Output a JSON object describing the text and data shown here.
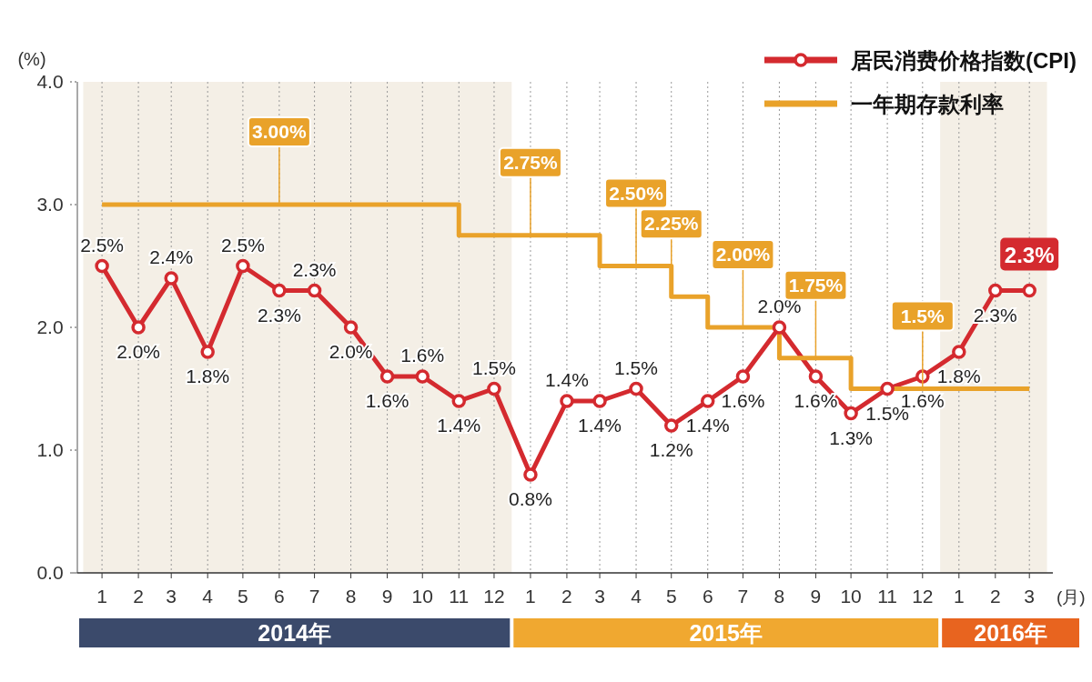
{
  "chart_data": {
    "type": "line",
    "ylabel": "(%)",
    "xlabel": "(月)",
    "x": [
      "2014-01",
      "2014-02",
      "2014-03",
      "2014-04",
      "2014-05",
      "2014-06",
      "2014-07",
      "2014-08",
      "2014-09",
      "2014-10",
      "2014-11",
      "2014-12",
      "2015-01",
      "2015-02",
      "2015-03",
      "2015-04",
      "2015-05",
      "2015-06",
      "2015-07",
      "2015-08",
      "2015-09",
      "2015-10",
      "2015-11",
      "2015-12",
      "2016-01",
      "2016-02",
      "2016-03"
    ],
    "xlim": [
      "2013-12-11",
      "2016-03-21"
    ],
    "xticks": [
      {
        "value": "2014-01",
        "label": "1"
      },
      {
        "value": "2014-02",
        "label": "2"
      },
      {
        "value": "2014-03",
        "label": "3"
      },
      {
        "value": "2014-04",
        "label": "4"
      },
      {
        "value": "2014-05",
        "label": "5"
      },
      {
        "value": "2014-06",
        "label": "6"
      },
      {
        "value": "2014-07",
        "label": "7"
      },
      {
        "value": "2014-08",
        "label": "8"
      },
      {
        "value": "2014-09",
        "label": "9"
      },
      {
        "value": "2014-10",
        "label": "10"
      },
      {
        "value": "2014-11",
        "label": "11"
      },
      {
        "value": "2014-12",
        "label": "12"
      },
      {
        "value": "2015-01",
        "label": "1"
      },
      {
        "value": "2015-02",
        "label": "2"
      },
      {
        "value": "2015-03",
        "label": "3"
      },
      {
        "value": "2015-04",
        "label": "4"
      },
      {
        "value": "2015-05",
        "label": "5"
      },
      {
        "value": "2015-06",
        "label": "6"
      },
      {
        "value": "2015-07",
        "label": "7"
      },
      {
        "value": "2015-08",
        "label": "8"
      },
      {
        "value": "2015-09",
        "label": "9"
      },
      {
        "value": "2015-10",
        "label": "10"
      },
      {
        "value": "2015-11",
        "label": "11"
      },
      {
        "value": "2015-12",
        "label": "12"
      },
      {
        "value": "2016-01",
        "label": "1"
      },
      {
        "value": "2016-02",
        "label": "2"
      },
      {
        "value": "2016-03",
        "label": "3"
      }
    ],
    "series": [
      {
        "name": "居民消费价格指数(CPI)",
        "color": "#d42a2f",
        "marker": "circle",
        "values": [
          2.5,
          2.0,
          2.4,
          1.8,
          2.5,
          2.3,
          2.3,
          2.0,
          1.6,
          1.6,
          1.4,
          1.5,
          0.8,
          1.4,
          1.4,
          1.5,
          1.2,
          1.4,
          1.6,
          2.0,
          1.6,
          1.3,
          1.5,
          1.6,
          1.8,
          2.3,
          2.3
        ],
        "value_labels": [
          "2.5%",
          "2.0%",
          "2.4%",
          "1.8%",
          "2.5%",
          "2.3%",
          "2.3%",
          "2.0%",
          "1.6%",
          "1.6%",
          "1.4%",
          "1.5%",
          "0.8%",
          "1.4%",
          "1.4%",
          "1.5%",
          "1.2%",
          "1.4%",
          "1.6%",
          "2.0%",
          "1.6%",
          "1.3%",
          "1.5%",
          "1.6%",
          "1.8%",
          "2.3%",
          "2.3%"
        ]
      },
      {
        "name": "一年期存款利率",
        "type": "step",
        "color": "#e9a22a",
        "marker": "none",
        "values": [
          3.0,
          3.0,
          3.0,
          3.0,
          3.0,
          3.0,
          3.0,
          3.0,
          3.0,
          3.0,
          2.75,
          2.75,
          2.75,
          2.75,
          2.5,
          2.5,
          2.25,
          2.0,
          2.0,
          1.75,
          1.75,
          1.5,
          1.5,
          1.5,
          1.5,
          1.5,
          1.5
        ],
        "value_labels": [
          null,
          null,
          null,
          null,
          null,
          "3.00%",
          null,
          null,
          null,
          null,
          null,
          null,
          "2.75%",
          null,
          null,
          "2.50%",
          "2.25%",
          null,
          "2.00%",
          null,
          "1.75%",
          null,
          null,
          "1.5%",
          null,
          null,
          null
        ]
      }
    ],
    "ylim": [
      0,
      4
    ],
    "yticks": [
      {
        "value": 0,
        "label": "0.0"
      },
      {
        "value": 1,
        "label": "1.0"
      },
      {
        "value": 2,
        "label": "2.0"
      },
      {
        "value": 3,
        "label": "3.0"
      },
      {
        "value": 4,
        "label": "4.0"
      }
    ],
    "grid": "x",
    "legend": "top right",
    "bands": [
      {
        "axis": "x",
        "from": "2013-12-16",
        "to": "2014-12-16",
        "color": "#f4efe6"
      },
      {
        "axis": "x",
        "from": "2015-12-16",
        "to": "2016-03-16",
        "color": "#f4efe6"
      }
    ],
    "annotations": [
      "2014年",
      "2015年",
      "2016年"
    ]
  }
}
